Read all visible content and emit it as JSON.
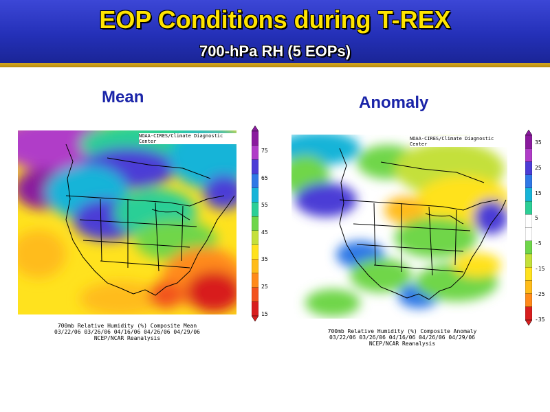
{
  "header": {
    "title": "EOP Conditions during T-REX",
    "subtitle": "700-hPa RH (5 EOPs)"
  },
  "panels": [
    {
      "id": "mean",
      "title": "Mean",
      "credit": "NOAA-CIRES/Climate Diagnostic Center",
      "caption_line1": "700mb Relative Humidity (%) Composite Mean",
      "caption_line2": "03/22/06 03/26/06 04/16/06 04/26/06 04/29/06",
      "caption_line3": "NCEP/NCAR Reanalysis",
      "colorbar_ticks": [
        "75",
        "65",
        "55",
        "45",
        "35",
        "25",
        "15"
      ],
      "colorbar_colors": [
        "#8a1a9e",
        "#b03cc8",
        "#4c3cd6",
        "#2f78e6",
        "#16b4d8",
        "#2ccf96",
        "#6fd64a",
        "#c4e03a",
        "#ffe21e",
        "#ffbc1a",
        "#ff8a1a",
        "#f2521e",
        "#d81e1e"
      ]
    },
    {
      "id": "anomaly",
      "title": "Anomaly",
      "credit": "NOAA-CIRES/Climate Diagnostic Center",
      "caption_line1": "700mb Relative Humidity (%) Composite Anomaly",
      "caption_line2": "03/22/06 03/26/06 04/16/06 04/26/06 04/29/06",
      "caption_line3": "NCEP/NCAR Reanalysis",
      "colorbar_ticks": [
        "35",
        "25",
        "15",
        "5",
        "-5",
        "-15",
        "-25",
        "-35"
      ],
      "colorbar_colors": [
        "#8a1a9e",
        "#b03cc8",
        "#4c3cd6",
        "#2f78e6",
        "#16b4d8",
        "#2ccf96",
        "#ffffff",
        "#ffffff",
        "#6fd64a",
        "#c4e03a",
        "#ffe21e",
        "#ffbc1a",
        "#ff8a1a",
        "#d81e1e"
      ]
    }
  ]
}
